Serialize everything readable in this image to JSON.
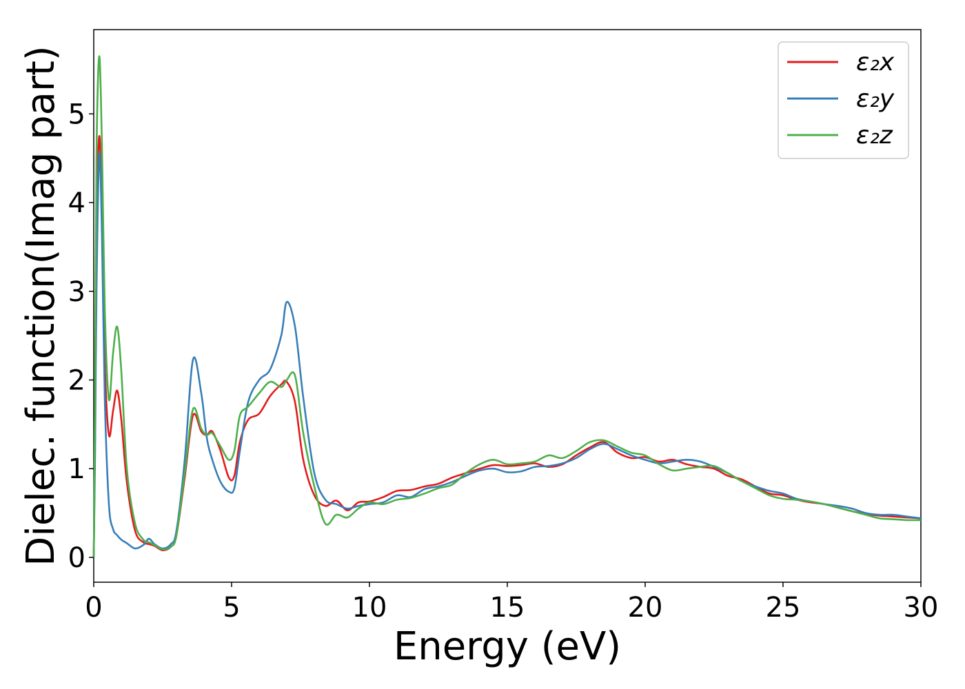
{
  "chart_data": {
    "type": "line",
    "title": "",
    "xlabel": "Energy (eV)",
    "ylabel": "Dielec. function(Imag part)",
    "xlim": [
      0,
      30
    ],
    "ylim": [
      -0.28,
      5.95
    ],
    "xticks": [
      0,
      5,
      10,
      15,
      20,
      25,
      30
    ],
    "yticks": [
      0,
      1,
      2,
      3,
      4,
      5
    ],
    "grid": false,
    "legend_position": "top-right",
    "series": [
      {
        "name": "ε₂x",
        "color": "#e41a1c",
        "x": [
          0,
          0.05,
          0.1,
          0.2,
          0.3,
          0.4,
          0.55,
          0.7,
          0.85,
          1.0,
          1.2,
          1.5,
          1.8,
          2.0,
          2.2,
          2.5,
          2.8,
          3.0,
          3.3,
          3.6,
          3.9,
          4.1,
          4.3,
          4.6,
          4.9,
          5.1,
          5.3,
          5.6,
          6.0,
          6.4,
          6.8,
          7.0,
          7.3,
          7.6,
          8.0,
          8.4,
          8.8,
          9.2,
          9.6,
          10.0,
          10.5,
          11.0,
          11.5,
          12.0,
          12.5,
          13.0,
          13.5,
          14.0,
          14.5,
          15.0,
          15.5,
          16.0,
          16.5,
          17.0,
          17.5,
          18.0,
          18.5,
          19.0,
          19.5,
          20.0,
          20.5,
          21.0,
          21.5,
          22.0,
          22.5,
          23.0,
          23.5,
          24.0,
          24.5,
          25.0,
          25.5,
          26.0,
          26.5,
          27.0,
          27.5,
          28.0,
          28.5,
          29.0,
          29.5,
          30.0
        ],
        "y": [
          0.0,
          1.5,
          3.6,
          4.75,
          3.8,
          2.2,
          1.38,
          1.65,
          1.88,
          1.55,
          0.85,
          0.3,
          0.17,
          0.15,
          0.13,
          0.08,
          0.12,
          0.25,
          0.9,
          1.6,
          1.42,
          1.38,
          1.42,
          1.2,
          0.9,
          0.92,
          1.3,
          1.55,
          1.62,
          1.82,
          1.95,
          1.98,
          1.75,
          1.1,
          0.7,
          0.58,
          0.64,
          0.53,
          0.62,
          0.63,
          0.68,
          0.75,
          0.76,
          0.8,
          0.83,
          0.9,
          0.95,
          1.0,
          1.04,
          1.03,
          1.04,
          1.06,
          1.02,
          1.05,
          1.15,
          1.24,
          1.3,
          1.18,
          1.12,
          1.13,
          1.08,
          1.1,
          1.05,
          1.02,
          1.0,
          0.92,
          0.88,
          0.8,
          0.72,
          0.7,
          0.65,
          0.62,
          0.6,
          0.56,
          0.52,
          0.49,
          0.47,
          0.46,
          0.45,
          0.44
        ]
      },
      {
        "name": "ε₂y",
        "color": "#377eb8",
        "x": [
          0,
          0.05,
          0.1,
          0.2,
          0.3,
          0.4,
          0.55,
          0.7,
          0.85,
          1.0,
          1.2,
          1.5,
          1.8,
          2.0,
          2.2,
          2.5,
          2.8,
          3.0,
          3.3,
          3.6,
          3.9,
          4.1,
          4.3,
          4.6,
          4.9,
          5.1,
          5.3,
          5.6,
          6.0,
          6.4,
          6.8,
          7.0,
          7.3,
          7.6,
          8.0,
          8.4,
          8.8,
          9.2,
          9.6,
          10.0,
          10.5,
          11.0,
          11.5,
          12.0,
          12.5,
          13.0,
          13.5,
          14.0,
          14.5,
          15.0,
          15.5,
          16.0,
          16.5,
          17.0,
          17.5,
          18.0,
          18.5,
          19.0,
          19.5,
          20.0,
          20.5,
          21.0,
          21.5,
          22.0,
          22.5,
          23.0,
          23.5,
          24.0,
          24.5,
          25.0,
          25.5,
          26.0,
          26.5,
          27.0,
          27.5,
          28.0,
          28.5,
          29.0,
          29.5,
          30.0
        ],
        "y": [
          0.0,
          1.2,
          3.0,
          4.55,
          3.6,
          1.8,
          0.6,
          0.32,
          0.25,
          0.2,
          0.16,
          0.1,
          0.14,
          0.21,
          0.15,
          0.1,
          0.15,
          0.3,
          1.1,
          2.23,
          1.85,
          1.35,
          1.1,
          0.85,
          0.74,
          0.78,
          1.2,
          1.75,
          2.0,
          2.12,
          2.5,
          2.88,
          2.6,
          1.8,
          0.95,
          0.65,
          0.6,
          0.55,
          0.58,
          0.6,
          0.62,
          0.7,
          0.68,
          0.77,
          0.8,
          0.85,
          0.92,
          0.98,
          1.0,
          0.96,
          0.97,
          1.02,
          1.03,
          1.06,
          1.12,
          1.22,
          1.28,
          1.22,
          1.15,
          1.1,
          1.06,
          1.08,
          1.1,
          1.08,
          1.02,
          0.95,
          0.86,
          0.8,
          0.75,
          0.72,
          0.66,
          0.63,
          0.6,
          0.58,
          0.55,
          0.5,
          0.48,
          0.48,
          0.46,
          0.44
        ]
      },
      {
        "name": "ε₂z",
        "color": "#4daf4a",
        "x": [
          0,
          0.05,
          0.1,
          0.2,
          0.3,
          0.4,
          0.55,
          0.7,
          0.85,
          1.0,
          1.2,
          1.5,
          1.8,
          2.0,
          2.2,
          2.5,
          2.8,
          3.0,
          3.3,
          3.6,
          3.9,
          4.1,
          4.3,
          4.6,
          4.9,
          5.1,
          5.3,
          5.6,
          6.0,
          6.4,
          6.8,
          7.0,
          7.3,
          7.6,
          8.0,
          8.4,
          8.8,
          9.2,
          9.6,
          10.0,
          10.5,
          11.0,
          11.5,
          12.0,
          12.5,
          13.0,
          13.5,
          14.0,
          14.5,
          15.0,
          15.5,
          16.0,
          16.5,
          17.0,
          17.5,
          18.0,
          18.5,
          19.0,
          19.5,
          20.0,
          20.5,
          21.0,
          21.5,
          22.0,
          22.5,
          23.0,
          23.5,
          24.0,
          24.5,
          25.0,
          25.5,
          26.0,
          26.5,
          27.0,
          27.5,
          28.0,
          28.5,
          29.0,
          29.5,
          30.0
        ],
        "y": [
          0.0,
          1.8,
          4.5,
          5.65,
          4.6,
          2.8,
          1.78,
          2.3,
          2.6,
          2.1,
          1.0,
          0.38,
          0.2,
          0.17,
          0.14,
          0.09,
          0.12,
          0.25,
          0.95,
          1.67,
          1.45,
          1.38,
          1.4,
          1.25,
          1.1,
          1.2,
          1.6,
          1.7,
          1.85,
          1.98,
          1.92,
          2.0,
          2.05,
          1.4,
          0.8,
          0.38,
          0.48,
          0.45,
          0.55,
          0.62,
          0.6,
          0.65,
          0.67,
          0.72,
          0.78,
          0.82,
          0.95,
          1.05,
          1.1,
          1.05,
          1.06,
          1.08,
          1.15,
          1.12,
          1.2,
          1.3,
          1.32,
          1.25,
          1.18,
          1.15,
          1.05,
          0.98,
          1.0,
          1.02,
          1.03,
          0.95,
          0.86,
          0.78,
          0.7,
          0.66,
          0.65,
          0.63,
          0.6,
          0.56,
          0.52,
          0.48,
          0.44,
          0.43,
          0.42,
          0.42
        ]
      }
    ]
  }
}
